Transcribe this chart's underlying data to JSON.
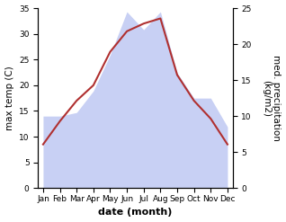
{
  "months": [
    "Jan",
    "Feb",
    "Mar",
    "Apr",
    "May",
    "Jun",
    "Jul",
    "Aug",
    "Sep",
    "Oct",
    "Nov",
    "Dec"
  ],
  "temp": [
    8.5,
    13.0,
    17.0,
    20.0,
    26.5,
    30.5,
    32.0,
    33.0,
    22.0,
    17.0,
    13.5,
    8.5
  ],
  "precip": [
    10.0,
    10.0,
    10.5,
    13.5,
    18.5,
    24.5,
    22.0,
    24.5,
    16.0,
    12.5,
    12.5,
    8.5
  ],
  "temp_color": "#b03030",
  "precip_fill": "#c8d0f4",
  "left_ylim": [
    0,
    35
  ],
  "right_ylim": [
    0,
    25
  ],
  "left_yticks": [
    0,
    5,
    10,
    15,
    20,
    25,
    30,
    35
  ],
  "right_yticks": [
    0,
    5,
    10,
    15,
    20,
    25
  ],
  "xlabel": "date (month)",
  "ylabel_left": "max temp (C)",
  "ylabel_right": "med. precipitation\n(kg/m2)",
  "bg_color": "#ffffff",
  "axis_fontsize": 7.5,
  "tick_fontsize": 6.5,
  "xlabel_fontsize": 8
}
